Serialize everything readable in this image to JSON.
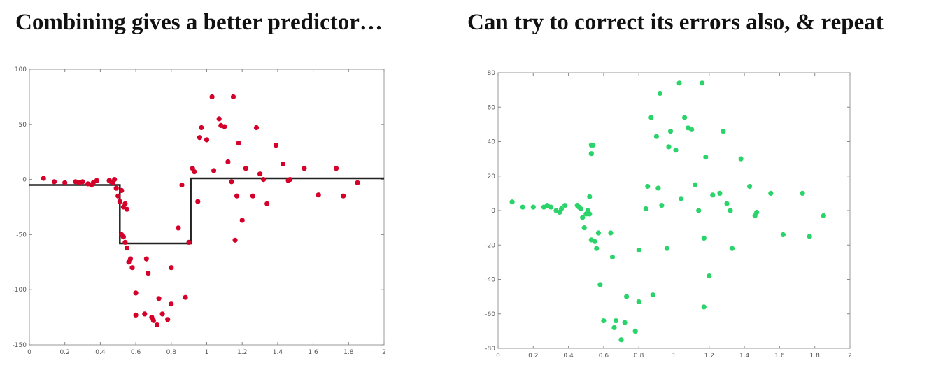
{
  "titles": {
    "left": "Combining gives a better predictor…",
    "right": "Can try to correct its errors also, & repeat"
  },
  "colors": {
    "left_points": "#d4002a",
    "right_points": "#2bd46a",
    "fit_line": "#222222",
    "frame": "#9a9a9a"
  },
  "chart_data": [
    {
      "type": "scatter",
      "title": "",
      "xlabel": "",
      "ylabel": "",
      "xlim": [
        0,
        2
      ],
      "ylim": [
        -150,
        100
      ],
      "xticks": [
        0,
        0.2,
        0.4,
        0.6,
        0.8,
        1,
        1.2,
        1.4,
        1.6,
        1.8,
        2
      ],
      "yticks": [
        -150,
        -100,
        -50,
        0,
        50,
        100
      ],
      "xtick_labels": [
        "0",
        "0.2",
        "0.4",
        "0.6",
        "0.8",
        "1",
        "1.2",
        "1.4",
        "1.6",
        "1.8",
        "2"
      ],
      "ytick_labels": [
        "-150",
        "-100",
        "-50",
        "0",
        "50",
        "100"
      ],
      "grid": false,
      "series": [
        {
          "kind": "points",
          "values": [
            [
              0.08,
              1
            ],
            [
              0.14,
              -2
            ],
            [
              0.2,
              -3
            ],
            [
              0.26,
              -2
            ],
            [
              0.28,
              -3
            ],
            [
              0.3,
              -2
            ],
            [
              0.33,
              -4
            ],
            [
              0.35,
              -5
            ],
            [
              0.36,
              -3
            ],
            [
              0.38,
              -1
            ],
            [
              0.45,
              -1
            ],
            [
              0.46,
              -2
            ],
            [
              0.47,
              -3
            ],
            [
              0.48,
              0
            ],
            [
              0.49,
              -8
            ],
            [
              0.5,
              -15
            ],
            [
              0.51,
              -20
            ],
            [
              0.52,
              -10
            ],
            [
              0.53,
              -25
            ],
            [
              0.54,
              -22
            ],
            [
              0.55,
              -27
            ],
            [
              0.52,
              -50
            ],
            [
              0.53,
              -52
            ],
            [
              0.54,
              -57
            ],
            [
              0.55,
              -62
            ],
            [
              0.56,
              -75
            ],
            [
              0.57,
              -72
            ],
            [
              0.58,
              -80
            ],
            [
              0.6,
              -103
            ],
            [
              0.6,
              -123
            ],
            [
              0.65,
              -122
            ],
            [
              0.66,
              -72
            ],
            [
              0.67,
              -85
            ],
            [
              0.69,
              -125
            ],
            [
              0.7,
              -128
            ],
            [
              0.72,
              -132
            ],
            [
              0.73,
              -108
            ],
            [
              0.75,
              -122
            ],
            [
              0.78,
              -127
            ],
            [
              0.8,
              -113
            ],
            [
              0.8,
              -80
            ],
            [
              0.84,
              -44
            ],
            [
              0.86,
              -5
            ],
            [
              0.88,
              -107
            ],
            [
              0.9,
              -57
            ],
            [
              0.92,
              10
            ],
            [
              0.93,
              7
            ],
            [
              0.95,
              -20
            ],
            [
              0.96,
              38
            ],
            [
              0.97,
              47
            ],
            [
              1.0,
              36
            ],
            [
              1.03,
              75
            ],
            [
              1.04,
              8
            ],
            [
              1.07,
              55
            ],
            [
              1.08,
              49
            ],
            [
              1.1,
              48
            ],
            [
              1.12,
              16
            ],
            [
              1.14,
              -2
            ],
            [
              1.15,
              75
            ],
            [
              1.16,
              -55
            ],
            [
              1.17,
              -15
            ],
            [
              1.18,
              33
            ],
            [
              1.2,
              -37
            ],
            [
              1.22,
              10
            ],
            [
              1.26,
              -15
            ],
            [
              1.28,
              47
            ],
            [
              1.3,
              5
            ],
            [
              1.32,
              0
            ],
            [
              1.34,
              -22
            ],
            [
              1.39,
              31
            ],
            [
              1.43,
              14
            ],
            [
              1.46,
              -1
            ],
            [
              1.47,
              0
            ],
            [
              1.55,
              10
            ],
            [
              1.63,
              -14
            ],
            [
              1.73,
              10
            ],
            [
              1.77,
              -15
            ],
            [
              1.85,
              -3
            ]
          ]
        },
        {
          "kind": "step-line",
          "values": [
            [
              0,
              -5
            ],
            [
              0.51,
              -5
            ],
            [
              0.51,
              -58
            ],
            [
              0.91,
              -58
            ],
            [
              0.91,
              1
            ],
            [
              2,
              1
            ]
          ]
        }
      ]
    },
    {
      "type": "scatter",
      "title": "",
      "xlabel": "",
      "ylabel": "",
      "xlim": [
        0,
        2
      ],
      "ylim": [
        -80,
        80
      ],
      "xticks": [
        0,
        0.2,
        0.4,
        0.6,
        0.8,
        1,
        1.2,
        1.4,
        1.6,
        1.8,
        2
      ],
      "yticks": [
        -80,
        -60,
        -40,
        -20,
        0,
        20,
        40,
        60,
        80
      ],
      "xtick_labels": [
        "0",
        "0.2",
        "0.4",
        "0.6",
        "0.8",
        "1",
        "1.2",
        "1.4",
        "1.6",
        "1.8",
        "2"
      ],
      "ytick_labels": [
        "-80",
        "-60",
        "-40",
        "-20",
        "0",
        "20",
        "40",
        "60",
        "80"
      ],
      "grid": false,
      "series": [
        {
          "kind": "points",
          "values": [
            [
              0.08,
              5
            ],
            [
              0.14,
              2
            ],
            [
              0.2,
              2
            ],
            [
              0.26,
              2
            ],
            [
              0.28,
              3
            ],
            [
              0.3,
              2
            ],
            [
              0.33,
              0
            ],
            [
              0.35,
              -1
            ],
            [
              0.36,
              1
            ],
            [
              0.38,
              3
            ],
            [
              0.45,
              3
            ],
            [
              0.46,
              2
            ],
            [
              0.47,
              1
            ],
            [
              0.48,
              -4
            ],
            [
              0.49,
              -10
            ],
            [
              0.5,
              -2
            ],
            [
              0.51,
              0
            ],
            [
              0.52,
              8
            ],
            [
              0.53,
              38
            ],
            [
              0.53,
              33
            ],
            [
              0.54,
              38
            ],
            [
              0.52,
              -2
            ],
            [
              0.53,
              -17
            ],
            [
              0.55,
              -18
            ],
            [
              0.56,
              -22
            ],
            [
              0.57,
              -13
            ],
            [
              0.58,
              -43
            ],
            [
              0.6,
              -64
            ],
            [
              0.64,
              -13
            ],
            [
              0.65,
              -27
            ],
            [
              0.66,
              -68
            ],
            [
              0.67,
              -64
            ],
            [
              0.7,
              -75
            ],
            [
              0.72,
              -65
            ],
            [
              0.73,
              -50
            ],
            [
              0.78,
              -70
            ],
            [
              0.8,
              -53
            ],
            [
              0.8,
              -23
            ],
            [
              0.84,
              1
            ],
            [
              0.85,
              14
            ],
            [
              0.87,
              54
            ],
            [
              0.88,
              -49
            ],
            [
              0.9,
              43
            ],
            [
              0.91,
              13
            ],
            [
              0.92,
              68
            ],
            [
              0.93,
              3
            ],
            [
              0.96,
              -22
            ],
            [
              0.97,
              37
            ],
            [
              0.98,
              46
            ],
            [
              1.01,
              35
            ],
            [
              1.03,
              74
            ],
            [
              1.04,
              7
            ],
            [
              1.06,
              54
            ],
            [
              1.08,
              48
            ],
            [
              1.1,
              47
            ],
            [
              1.12,
              15
            ],
            [
              1.14,
              0
            ],
            [
              1.16,
              74
            ],
            [
              1.17,
              -16
            ],
            [
              1.17,
              -56
            ],
            [
              1.18,
              31
            ],
            [
              1.2,
              -38
            ],
            [
              1.22,
              9
            ],
            [
              1.26,
              10
            ],
            [
              1.28,
              46
            ],
            [
              1.3,
              4
            ],
            [
              1.32,
              0
            ],
            [
              1.33,
              -22
            ],
            [
              1.38,
              30
            ],
            [
              1.43,
              14
            ],
            [
              1.46,
              -3
            ],
            [
              1.47,
              -1
            ],
            [
              1.55,
              10
            ],
            [
              1.62,
              -14
            ],
            [
              1.73,
              10
            ],
            [
              1.77,
              -15
            ],
            [
              1.85,
              -3
            ]
          ]
        }
      ]
    }
  ]
}
